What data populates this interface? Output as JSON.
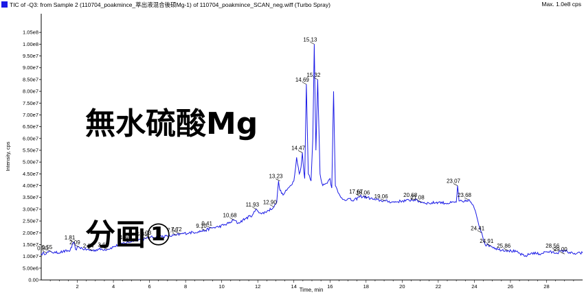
{
  "header": {
    "title": "TIC of -Q3: from Sample 2 (110704_poakmince_萃出液混合後硕Mg-1) of 110704_poakmince_SCAN_neg.wiff (Turbo Spray)",
    "max_label": "Max. 1.0e8 cps",
    "series_color": "#1a1ae6"
  },
  "chart_data": {
    "type": "line",
    "title": "",
    "xlabel": "Time, min",
    "ylabel": "Intensity, cps",
    "xlim": [
      0,
      30
    ],
    "ylim": [
      0,
      110000000.0
    ],
    "x_ticks": [
      2,
      4,
      6,
      8,
      10,
      12,
      14,
      16,
      18,
      20,
      22,
      24,
      26,
      28
    ],
    "y_tick_values": [
      0,
      5000000.0,
      10000000.0,
      15000000.0,
      20000000.0,
      25000000.0,
      30000000.0,
      35000000.0,
      40000000.0,
      45000000.0,
      50000000.0,
      55000000.0,
      60000000.0,
      65000000.0,
      70000000.0,
      75000000.0,
      80000000.0,
      85000000.0,
      90000000.0,
      95000000.0,
      100000000.0,
      105000000.0
    ],
    "y_tick_labels": [
      "0.00",
      "5.00e6",
      "1.00e7",
      "1.50e7",
      "2.00e7",
      "2.50e7",
      "3.00e7",
      "3.50e7",
      "4.00e7",
      "4.50e7",
      "5.00e7",
      "5.50e7",
      "6.00e7",
      "6.50e7",
      "7.00e7",
      "7.50e7",
      "8.00e7",
      "8.50e7",
      "9.00e7",
      "9.50e7",
      "1.00e8",
      "1.05e8"
    ],
    "series": [
      {
        "color": "#1a1ae6",
        "x": [
          0.0,
          0.3,
          0.55,
          0.8,
          1.2,
          1.6,
          1.81,
          1.9,
          2.09,
          2.4,
          2.84,
          3.2,
          3.66,
          4.0,
          4.5,
          4.86,
          5.2,
          5.81,
          6.03,
          6.5,
          7.0,
          7.5,
          7.72,
          8.2,
          8.7,
          9.1,
          9.41,
          9.8,
          10.2,
          10.5,
          10.68,
          10.9,
          11.3,
          11.7,
          11.93,
          12.2,
          12.6,
          12.9,
          13.05,
          13.15,
          13.23,
          13.4,
          13.6,
          13.8,
          14.0,
          14.15,
          14.3,
          14.4,
          14.47,
          14.55,
          14.6,
          14.69,
          14.8,
          14.95,
          15.05,
          15.13,
          15.22,
          15.32,
          15.45,
          15.6,
          15.8,
          16.0,
          16.1,
          16.2,
          16.3,
          16.45,
          16.6,
          16.8,
          17.0,
          17.3,
          17.67,
          18.06,
          18.5,
          19.06,
          19.5,
          20.0,
          20.68,
          21.08,
          21.5,
          22.0,
          22.5,
          23.0,
          23.07,
          23.15,
          23.4,
          23.68,
          23.9,
          24.1,
          24.3,
          24.41,
          24.6,
          24.91,
          25.3,
          25.86,
          26.3,
          26.8,
          27.2,
          27.6,
          28.0,
          28.56,
          29.0,
          29.5,
          30.0
        ],
        "y": [
          11000000.0,
          11500000.0,
          12000000.0,
          11500000.0,
          12000000.0,
          12500000.0,
          16000000.0,
          13000000.0,
          14000000.0,
          13000000.0,
          12500000.0,
          13000000.0,
          13000000.0,
          14000000.0,
          15500000.0,
          16000000.0,
          17000000.0,
          17500000.0,
          18000000.0,
          18500000.0,
          18500000.0,
          19000000.0,
          19500000.0,
          20000000.0,
          20500000.0,
          21000000.0,
          22000000.0,
          22500000.0,
          23500000.0,
          24500000.0,
          25500000.0,
          24000000.0,
          26000000.0,
          27500000.0,
          30000000.0,
          28000000.0,
          29500000.0,
          31000000.0,
          33000000.0,
          42000000.0,
          38000000.0,
          36000000.0,
          38000000.0,
          40000000.0,
          42000000.0,
          52000000.0,
          45000000.0,
          48000000.0,
          54000000.0,
          46000000.0,
          43000000.0,
          83000000.0,
          45000000.0,
          42000000.0,
          60000000.0,
          100000000.0,
          55000000.0,
          85000000.0,
          45000000.0,
          40000000.0,
          41000000.0,
          43000000.0,
          39000000.0,
          80000000.0,
          40000000.0,
          37000000.0,
          35000000.0,
          34000000.0,
          34500000.0,
          33500000.0,
          35500000.0,
          35000000.0,
          34000000.0,
          33500000.0,
          33000000.0,
          33500000.0,
          34000000.0,
          33000000.0,
          32500000.0,
          33000000.0,
          32500000.0,
          33000000.0,
          40000000.0,
          33500000.0,
          33000000.0,
          34000000.0,
          32000000.0,
          28000000.0,
          22000000.0,
          20000000.0,
          15000000.0,
          14500000.0,
          13000000.0,
          12500000.0,
          12000000.0,
          10000000.0,
          11500000.0,
          11000000.0,
          12000000.0,
          11500000.0,
          12500000.0,
          11000000.0,
          11500000.0
        ]
      }
    ],
    "annotations": [
      {
        "label": "0.30",
        "x": 0.3,
        "y": 11500000.0
      },
      {
        "label": "0.55",
        "x": 0.55,
        "y": 12000000.0
      },
      {
        "label": "1.81",
        "x": 1.81,
        "y": 16000000.0
      },
      {
        "label": "2.09",
        "x": 2.09,
        "y": 14000000.0
      },
      {
        "label": "2.84",
        "x": 2.84,
        "y": 12500000.0
      },
      {
        "label": "3.66",
        "x": 3.66,
        "y": 13000000.0
      },
      {
        "label": "4.86",
        "x": 4.86,
        "y": 16000000.0
      },
      {
        "label": "5.81",
        "x": 5.81,
        "y": 17500000.0
      },
      {
        "label": "6.03",
        "x": 6.03,
        "y": 18000000.0
      },
      {
        "label": "7.50",
        "x": 7.5,
        "y": 19000000.0
      },
      {
        "label": "7.72",
        "x": 7.72,
        "y": 19500000.0
      },
      {
        "label": "9.10",
        "x": 9.1,
        "y": 21000000.0
      },
      {
        "label": "9.41",
        "x": 9.41,
        "y": 22000000.0
      },
      {
        "label": "10.68",
        "x": 10.68,
        "y": 25500000.0
      },
      {
        "label": "11.93",
        "x": 11.93,
        "y": 30000000.0
      },
      {
        "label": "12.90",
        "x": 12.9,
        "y": 31000000.0
      },
      {
        "label": "13.23",
        "x": 13.23,
        "y": 42000000.0
      },
      {
        "label": "14.47",
        "x": 14.47,
        "y": 54000000.0
      },
      {
        "label": "14.69",
        "x": 14.69,
        "y": 83000000.0
      },
      {
        "label": "15.13",
        "x": 15.13,
        "y": 100000000.0
      },
      {
        "label": "15.32",
        "x": 15.32,
        "y": 85000000.0
      },
      {
        "label": "17.67",
        "x": 17.67,
        "y": 35500000.0
      },
      {
        "label": "18.06",
        "x": 18.06,
        "y": 35000000.0
      },
      {
        "label": "19.06",
        "x": 19.06,
        "y": 33500000.0
      },
      {
        "label": "20.68",
        "x": 20.68,
        "y": 34000000.0
      },
      {
        "label": "21.08",
        "x": 21.08,
        "y": 33000000.0
      },
      {
        "label": "23.07",
        "x": 23.07,
        "y": 40000000.0
      },
      {
        "label": "23.68",
        "x": 23.68,
        "y": 34000000.0
      },
      {
        "label": "24.41",
        "x": 24.41,
        "y": 20000000.0
      },
      {
        "label": "24.91",
        "x": 24.91,
        "y": 14500000.0
      },
      {
        "label": "25.86",
        "x": 25.86,
        "y": 12500000.0
      },
      {
        "label": "28.56",
        "x": 28.56,
        "y": 12500000.0
      },
      {
        "label": "29.00",
        "x": 29.0,
        "y": 11000000.0
      }
    ]
  },
  "annotation_text": {
    "line1": "無水硫酸Mg",
    "line2": "分画①"
  }
}
